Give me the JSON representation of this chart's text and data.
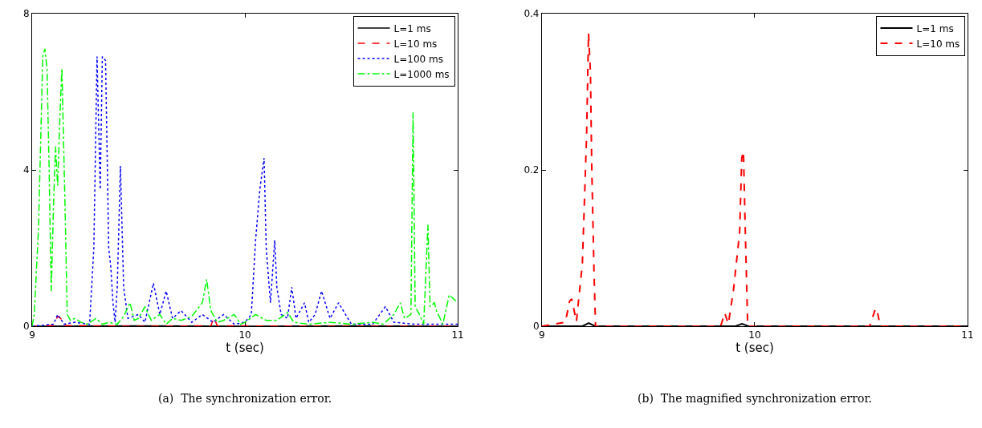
{
  "chart_data": [
    {
      "type": "line",
      "xlabel": "t (sec)",
      "xlim": [
        9,
        11
      ],
      "xticks": [
        9,
        10,
        11
      ],
      "ylim": [
        0,
        8
      ],
      "yticks": [
        0,
        4,
        8
      ],
      "legend": "top right",
      "annotations": [
        "(a)  The synchronization error."
      ],
      "series": [
        {
          "name": "L=1 ms",
          "color": "#000000",
          "line_style": "solid",
          "x": [
            9,
            9.5,
            10,
            10.5,
            11
          ],
          "values": [
            0,
            0.01,
            0,
            0.01,
            0
          ]
        },
        {
          "name": "L=10 ms",
          "color": "#ff0000",
          "line_style": "dashed",
          "x": [
            9,
            9.1,
            9.12,
            9.135,
            9.15,
            9.5,
            9.84,
            9.855,
            9.87,
            10.5,
            11
          ],
          "values": [
            0,
            0.02,
            0.25,
            0.2,
            0.02,
            0,
            0.01,
            0.22,
            0.01,
            0,
            0
          ]
        },
        {
          "name": "L=100 ms",
          "color": "#0000ff",
          "line_style": "dotted",
          "x": [
            9,
            9.1,
            9.12,
            9.15,
            9.2,
            9.27,
            9.29,
            9.305,
            9.32,
            9.33,
            9.345,
            9.36,
            9.37,
            9.38,
            9.39,
            9.4,
            9.415,
            9.43,
            9.45,
            9.5,
            9.53,
            9.57,
            9.6,
            9.63,
            9.66,
            9.7,
            9.75,
            9.8,
            9.85,
            9.9,
            9.95,
            10,
            10.03,
            10.05,
            10.07,
            10.09,
            10.1,
            10.12,
            10.14,
            10.15,
            10.17,
            10.2,
            10.22,
            10.24,
            10.28,
            10.3,
            10.33,
            10.36,
            10.4,
            10.44,
            10.5,
            10.6,
            10.66,
            10.7,
            10.8,
            11
          ],
          "values": [
            0,
            0.05,
            0.3,
            0.05,
            0.1,
            0.05,
            2.0,
            6.9,
            3.5,
            6.9,
            6.8,
            2.0,
            1.5,
            0.6,
            0.1,
            1.0,
            4.1,
            1.0,
            0.2,
            0.3,
            0.1,
            1.1,
            0.3,
            0.9,
            0.2,
            0.4,
            0.1,
            0.3,
            0.1,
            0.3,
            0.05,
            0.1,
            0.3,
            2.2,
            3.5,
            4.3,
            2.0,
            0.6,
            2.2,
            1.0,
            0.3,
            0.2,
            1.0,
            0.2,
            0.6,
            0.1,
            0.3,
            0.9,
            0.2,
            0.6,
            0.05,
            0.05,
            0.5,
            0.1,
            0.05,
            0.05
          ]
        },
        {
          "name": "L=1000 ms",
          "color": "#00ff00",
          "line_style": "dashdot",
          "x": [
            9,
            9.01,
            9.03,
            9.05,
            9.06,
            9.07,
            9.08,
            9.09,
            9.1,
            9.11,
            9.12,
            9.13,
            9.14,
            9.155,
            9.165,
            9.18,
            9.2,
            9.23,
            9.26,
            9.3,
            9.33,
            9.36,
            9.4,
            9.43,
            9.46,
            9.48,
            9.5,
            9.53,
            9.56,
            9.6,
            9.63,
            9.66,
            9.7,
            9.75,
            9.8,
            9.82,
            9.84,
            9.87,
            9.9,
            9.95,
            9.98,
            10,
            10.05,
            10.1,
            10.15,
            10.2,
            10.23,
            10.3,
            10.4,
            10.5,
            10.6,
            10.65,
            10.7,
            10.73,
            10.75,
            10.78,
            10.79,
            10.8,
            10.82,
            10.84,
            10.86,
            10.87,
            10.89,
            10.9,
            10.93,
            10.96,
            11
          ],
          "values": [
            0,
            0.3,
            2.5,
            6.9,
            7.1,
            6.6,
            4.0,
            0.9,
            3.0,
            4.6,
            3.6,
            5.3,
            6.6,
            3.0,
            0.3,
            0.15,
            0.2,
            0.1,
            0.05,
            0.2,
            0.05,
            0.1,
            0.05,
            0.25,
            0.6,
            0.15,
            0.2,
            0.5,
            0.15,
            0.3,
            0.05,
            0.2,
            0.15,
            0.25,
            0.6,
            1.2,
            0.4,
            0.1,
            0.15,
            0.3,
            0.05,
            0.1,
            0.3,
            0.15,
            0.15,
            0.35,
            0.1,
            0.05,
            0.1,
            0.05,
            0.1,
            0.05,
            0.3,
            0.6,
            0.2,
            0.3,
            5.47,
            0.5,
            0.3,
            0.05,
            2.6,
            0.5,
            0.6,
            0.4,
            0.05,
            0.8,
            0.6
          ]
        }
      ]
    },
    {
      "type": "line",
      "xlabel": "t (sec)",
      "xlim": [
        9,
        11
      ],
      "xticks": [
        9,
        10,
        11
      ],
      "ylim": [
        0,
        0.4
      ],
      "yticks": [
        0,
        0.2,
        0.4
      ],
      "legend": "top right",
      "annotations": [
        "(b)  The magnified synchronization error."
      ],
      "series": [
        {
          "name": "L=1 ms",
          "color": "#000000",
          "line_style": "solid",
          "x": [
            9,
            9.19,
            9.22,
            9.25,
            9.91,
            9.94,
            9.97,
            11
          ],
          "values": [
            0,
            0,
            0.004,
            0,
            0,
            0.003,
            0,
            0
          ]
        },
        {
          "name": "L=10 ms",
          "color": "#ff0000",
          "line_style": "dashed",
          "x": [
            9,
            9.11,
            9.13,
            9.14,
            9.162,
            9.19,
            9.21,
            9.219,
            9.228,
            9.234,
            9.245,
            9.252,
            9.84,
            9.859,
            9.876,
            9.9,
            9.929,
            9.939,
            9.947,
            9.955,
            9.967,
            10.54,
            10.568,
            10.575,
            10.59,
            11
          ],
          "values": [
            0,
            0.005,
            0.032,
            0.035,
            0.006,
            0.08,
            0.245,
            0.375,
            0.325,
            0.206,
            0.067,
            0,
            0,
            0.017,
            0.003,
            0.046,
            0.12,
            0.215,
            0.224,
            0.129,
            0,
            0,
            0.023,
            0.02,
            0,
            0
          ]
        }
      ]
    }
  ]
}
